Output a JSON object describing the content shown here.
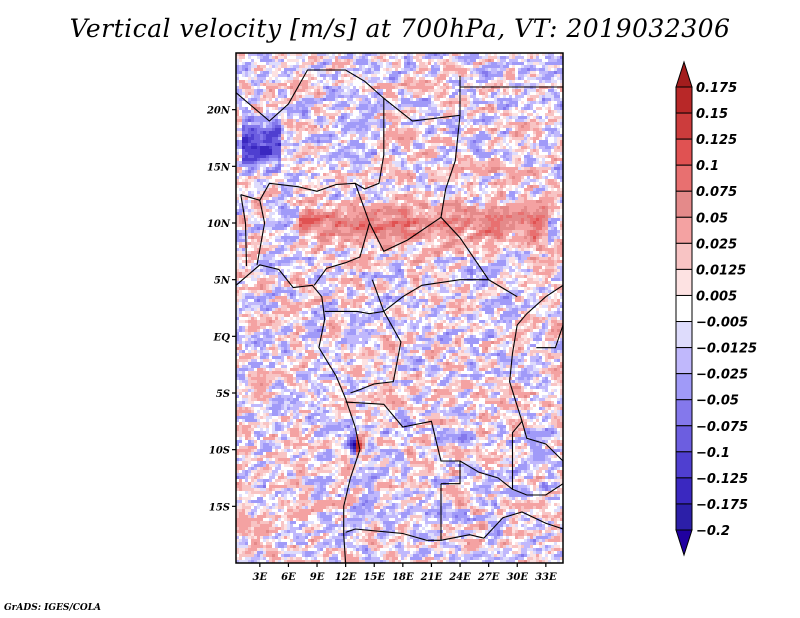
{
  "chart_data": {
    "type": "heatmap",
    "title": "Vertical velocity [m/s] at 700hPa, VT: 2019032306",
    "variable": "Vertical velocity",
    "units": "m/s",
    "level": "700hPa",
    "valid_time": "2019032306",
    "xlabel": "",
    "ylabel": "",
    "x_ticks": [
      "3E",
      "6E",
      "9E",
      "12E",
      "15E",
      "18E",
      "21E",
      "24E",
      "27E",
      "30E",
      "33E"
    ],
    "x_tick_values": [
      3,
      6,
      9,
      12,
      15,
      18,
      21,
      24,
      27,
      30,
      33
    ],
    "y_ticks": [
      "20N",
      "15N",
      "10N",
      "5N",
      "EQ",
      "5S",
      "10S",
      "15S"
    ],
    "y_tick_values": [
      20,
      15,
      10,
      5,
      0,
      -5,
      -10,
      -15
    ],
    "xlim": [
      0.5,
      34.8
    ],
    "ylim": [
      -20,
      25
    ],
    "grid": false,
    "map_overlay": "country boundaries and coastlines",
    "colorbar": {
      "placement": "right",
      "orientation": "vertical",
      "extend": "both",
      "levels": [
        0.175,
        0.15,
        0.125,
        0.1,
        0.075,
        0.05,
        0.025,
        0.0125,
        0.005,
        -0.005,
        -0.0125,
        -0.025,
        -0.05,
        -0.075,
        -0.1,
        -0.125,
        -0.175,
        -0.2
      ],
      "labels": [
        "0.175",
        "0.15",
        "0.125",
        "0.1",
        "0.075",
        "0.05",
        "0.025",
        "0.0125",
        "0.005",
        "−0.005",
        "−0.0125",
        "−0.025",
        "−0.05",
        "−0.075",
        "−0.1",
        "−0.125",
        "−0.175",
        "−0.2"
      ],
      "colors": [
        "#a31d1d",
        "#b82828",
        "#cc3c3c",
        "#e05252",
        "#e87070",
        "#e48a8a",
        "#f4a2a2",
        "#f8c4c4",
        "#fde2e2",
        "#ffffff",
        "#dedcfc",
        "#c0b8fc",
        "#a09af8",
        "#8478ec",
        "#6c5ee0",
        "#4f3fd0",
        "#3a28c0",
        "#2c1fa8",
        "#2000a0"
      ]
    },
    "notable_features": [
      {
        "label": "strong ascent band",
        "lat": 10,
        "lon_range": [
          7,
          33
        ],
        "sign": "positive"
      },
      {
        "label": "dipole near Angola coast",
        "lat": -9.5,
        "lon": 13,
        "sign": "mixed"
      },
      {
        "label": "strong descent streak",
        "lat": 17,
        "lon_range": [
          1,
          5
        ],
        "sign": "negative"
      }
    ]
  },
  "credit": "GrADS: IGES/COLA"
}
